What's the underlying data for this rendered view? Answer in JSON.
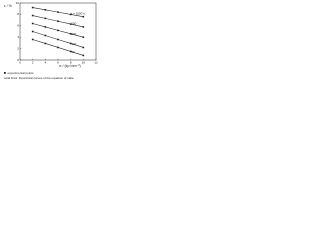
{
  "chart_data": {
    "type": "line",
    "ylabel": "ε / %",
    "xlabel": "σ / (kp mm⁻²)",
    "x": [
      2,
      4,
      6,
      8,
      10
    ],
    "series": [
      {
        "name": "t = 1000 h",
        "color": "#222222",
        "values": [
          9.2,
          8.8,
          8.4,
          8.0,
          7.6
        ]
      },
      {
        "name": "500",
        "color": "#222222",
        "values": [
          7.8,
          7.3,
          6.8,
          6.3,
          5.8
        ]
      },
      {
        "name": "200",
        "color": "#222222",
        "values": [
          6.4,
          5.8,
          5.2,
          4.6,
          4.0
        ]
      },
      {
        "name": "100",
        "color": "#222222",
        "values": [
          5.0,
          4.3,
          3.6,
          2.9,
          2.2
        ]
      },
      {
        "name": "50",
        "color": "#222222",
        "values": [
          3.6,
          2.9,
          2.2,
          1.5,
          0.8
        ]
      }
    ],
    "xlim": [
      0,
      12
    ],
    "xticks": [
      0,
      2,
      4,
      6,
      8,
      10,
      12
    ],
    "ylim": [
      0,
      10
    ],
    "yticks": [
      0,
      2,
      4,
      6,
      8,
      10
    ],
    "legend": [
      "experimental points",
      "solid lines: theoretical curves of the equation of state"
    ]
  }
}
